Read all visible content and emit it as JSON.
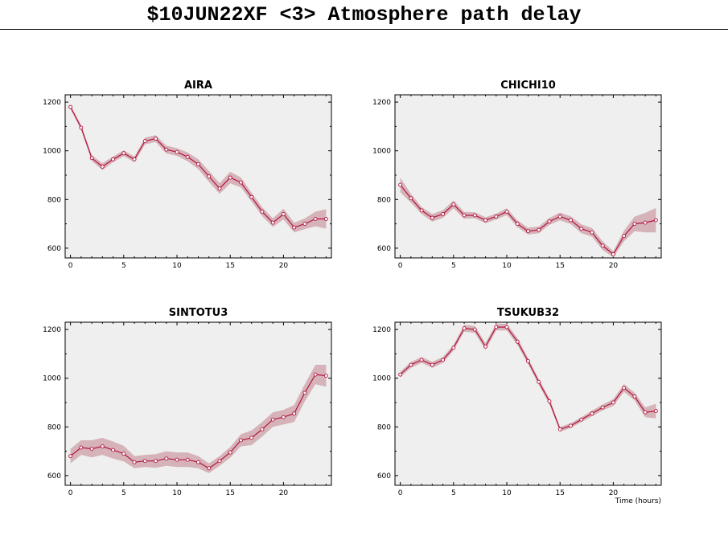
{
  "header": {
    "title": "$10JUN22XF <3>  Atmosphere path delay"
  },
  "colors": {
    "line": "#b3143c",
    "band": "#d5b3b9",
    "panel_bg": "#efefef"
  },
  "chart_data": [
    {
      "type": "line",
      "title": "AIRA",
      "xlabel": "",
      "xlim": [
        -0.5,
        24.5
      ],
      "ylim": [
        560,
        1230
      ],
      "xticks": [
        0,
        5,
        10,
        15,
        20
      ],
      "yticks": [
        600,
        800,
        1000,
        1200
      ],
      "series": [
        {
          "x": [
            0,
            1,
            2,
            3,
            4,
            5,
            6,
            7,
            8,
            9,
            10,
            11,
            12,
            13,
            14,
            15,
            16,
            17,
            18,
            19,
            20,
            21,
            22,
            23,
            24
          ],
          "values": [
            1180,
            1095,
            970,
            935,
            965,
            990,
            965,
            1040,
            1050,
            1005,
            995,
            975,
            945,
            895,
            845,
            890,
            870,
            810,
            750,
            705,
            740,
            685,
            700,
            720,
            720
          ],
          "band": [
            8,
            10,
            12,
            14,
            12,
            12,
            12,
            14,
            14,
            16,
            16,
            18,
            20,
            22,
            22,
            24,
            20,
            18,
            18,
            18,
            22,
            20,
            22,
            30,
            40
          ]
        }
      ]
    },
    {
      "type": "line",
      "title": "CHICHI10",
      "xlabel": "",
      "xlim": [
        -0.5,
        24.5
      ],
      "ylim": [
        560,
        1230
      ],
      "xticks": [
        0,
        5,
        10,
        15,
        20
      ],
      "yticks": [
        600,
        800,
        1000,
        1200
      ],
      "series": [
        {
          "x": [
            0,
            1,
            2,
            3,
            4,
            5,
            6,
            7,
            8,
            9,
            10,
            11,
            12,
            13,
            14,
            15,
            16,
            17,
            18,
            19,
            20,
            21,
            22,
            23,
            24
          ],
          "values": [
            860,
            805,
            755,
            725,
            740,
            780,
            735,
            735,
            715,
            730,
            750,
            700,
            670,
            675,
            710,
            730,
            715,
            680,
            665,
            610,
            575,
            650,
            700,
            705,
            715
          ],
          "band": [
            30,
            18,
            14,
            16,
            16,
            16,
            14,
            12,
            12,
            12,
            14,
            14,
            14,
            14,
            14,
            16,
            16,
            18,
            18,
            18,
            12,
            22,
            30,
            40,
            50
          ]
        }
      ]
    },
    {
      "type": "line",
      "title": "SINTOTU3",
      "xlabel": "",
      "xlim": [
        -0.5,
        24.5
      ],
      "ylim": [
        560,
        1230
      ],
      "xticks": [
        0,
        5,
        10,
        15,
        20
      ],
      "yticks": [
        600,
        800,
        1000,
        1200
      ],
      "series": [
        {
          "x": [
            0,
            1,
            2,
            3,
            4,
            5,
            6,
            7,
            8,
            9,
            10,
            11,
            12,
            13,
            14,
            15,
            16,
            17,
            18,
            19,
            20,
            21,
            22,
            23,
            24
          ],
          "values": [
            680,
            715,
            710,
            720,
            705,
            690,
            655,
            660,
            660,
            670,
            665,
            665,
            655,
            630,
            660,
            695,
            745,
            755,
            790,
            830,
            840,
            855,
            940,
            1015,
            1010
          ],
          "band": [
            30,
            30,
            35,
            35,
            35,
            32,
            25,
            25,
            28,
            30,
            30,
            30,
            25,
            20,
            20,
            22,
            25,
            30,
            30,
            30,
            30,
            35,
            35,
            40,
            45
          ]
        }
      ]
    },
    {
      "type": "line",
      "title": "TSUKUB32",
      "xlabel": "Time (hours)",
      "xlim": [
        -0.5,
        24.5
      ],
      "ylim": [
        560,
        1230
      ],
      "xticks": [
        0,
        5,
        10,
        15,
        20
      ],
      "yticks": [
        600,
        800,
        1000,
        1200
      ],
      "series": [
        {
          "x": [
            0,
            1,
            2,
            3,
            4,
            5,
            6,
            7,
            8,
            9,
            10,
            11,
            12,
            13,
            14,
            15,
            16,
            17,
            18,
            19,
            20,
            21,
            22,
            23,
            24
          ],
          "values": [
            1015,
            1055,
            1075,
            1055,
            1075,
            1125,
            1205,
            1200,
            1130,
            1210,
            1210,
            1150,
            1070,
            985,
            905,
            790,
            805,
            830,
            855,
            880,
            900,
            960,
            925,
            860,
            865
          ],
          "band": [
            12,
            12,
            12,
            12,
            12,
            12,
            14,
            14,
            14,
            14,
            14,
            14,
            12,
            12,
            12,
            10,
            10,
            10,
            12,
            12,
            14,
            16,
            16,
            20,
            30
          ]
        }
      ]
    }
  ]
}
